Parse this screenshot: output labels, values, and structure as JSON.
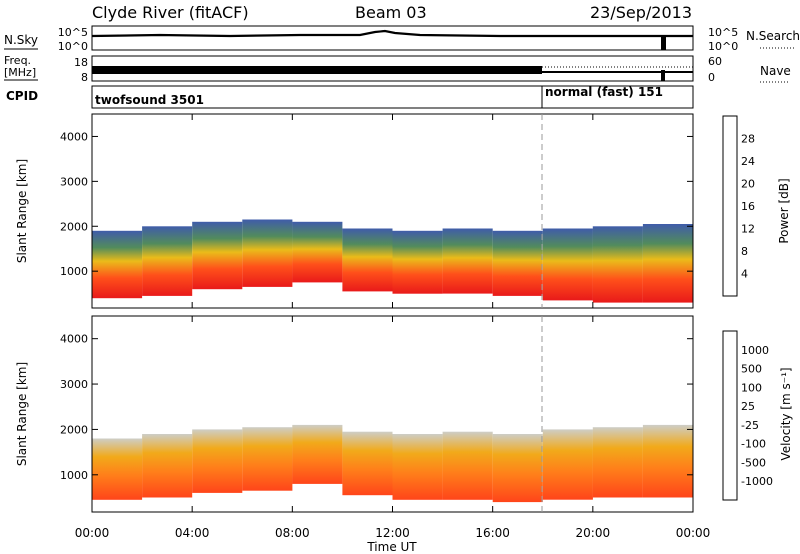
{
  "header": {
    "station": "Clyde River (fitACF)",
    "beam": "Beam 03",
    "date": "23/Sep/2013"
  },
  "noise_panel": {
    "left_label": "N.Sky",
    "right_label": "N.Search",
    "left_ticks": [
      "10^5",
      "10^0"
    ],
    "right_ticks": [
      "10^5",
      "10^0"
    ]
  },
  "freq_panel": {
    "left_label_1": "Freq.",
    "left_label_2": "[MHz]",
    "left_ticks": [
      "18",
      "8"
    ],
    "right_label": "Nave",
    "right_ticks": [
      "60",
      "0"
    ]
  },
  "cpid_panel": {
    "label": "CPID",
    "modes": [
      {
        "name": "twofsound 3501",
        "start_hour": 0
      },
      {
        "name": "normal (fast) 151",
        "start_hour": 18
      }
    ]
  },
  "chart_data": [
    {
      "type": "heatmap",
      "name": "power",
      "ylabel": "Slant Range [km]",
      "xlabel": "",
      "x_ticks": [
        "00:00",
        "04:00",
        "08:00",
        "12:00",
        "16:00",
        "20:00",
        "00:00"
      ],
      "xlim_hours": [
        0,
        24
      ],
      "y_ticks": [
        1000,
        2000,
        3000,
        4000
      ],
      "ylim": [
        180,
        4500
      ],
      "colorbar": {
        "title": "Power [dB]",
        "labels": [
          "4",
          "8",
          "12",
          "16",
          "20",
          "24",
          "28"
        ],
        "colors": [
          "#0a14e6",
          "#2a4aa0",
          "#3f7f4a",
          "#8cc63f",
          "#e8b400",
          "#ff7f00",
          "#ff3c00",
          "#e60000"
        ]
      },
      "bands": [
        {
          "start": 0,
          "end": 2,
          "lower": 400,
          "upper": 1900
        },
        {
          "start": 2,
          "end": 4,
          "lower": 450,
          "upper": 2000
        },
        {
          "start": 4,
          "end": 6,
          "lower": 600,
          "upper": 2100
        },
        {
          "start": 6,
          "end": 8,
          "lower": 650,
          "upper": 2150
        },
        {
          "start": 8,
          "end": 10,
          "lower": 750,
          "upper": 2100
        },
        {
          "start": 10,
          "end": 12,
          "lower": 550,
          "upper": 1950
        },
        {
          "start": 12,
          "end": 14,
          "lower": 500,
          "upper": 1900
        },
        {
          "start": 14,
          "end": 16,
          "lower": 500,
          "upper": 1950
        },
        {
          "start": 16,
          "end": 18,
          "lower": 450,
          "upper": 1900
        },
        {
          "start": 18,
          "end": 20,
          "lower": 350,
          "upper": 1950
        },
        {
          "start": 20,
          "end": 22,
          "lower": 300,
          "upper": 2000
        },
        {
          "start": 22,
          "end": 24,
          "lower": 300,
          "upper": 2050
        }
      ]
    },
    {
      "type": "heatmap",
      "name": "velocity",
      "ylabel": "Slant Range [km]",
      "xlabel": "Time UT",
      "x_ticks": [
        "00:00",
        "04:00",
        "08:00",
        "12:00",
        "16:00",
        "20:00",
        "00:00"
      ],
      "xlim_hours": [
        0,
        24
      ],
      "y_ticks": [
        1000,
        2000,
        3000,
        4000
      ],
      "ylim": [
        180,
        4500
      ],
      "colorbar": {
        "title": "Velocity [m s⁻¹]",
        "labels": [
          "1000",
          "500",
          "100",
          "25",
          "-25",
          "-100",
          "-500",
          "-1000"
        ],
        "colors": [
          "#1a2ab0",
          "#3f6fb0",
          "#3f8f50",
          "#6fcf3f",
          "#c8c8c0",
          "#f0a000",
          "#ff7000",
          "#ff3000",
          "#e00000"
        ]
      },
      "bands": [
        {
          "start": 0,
          "end": 2,
          "lower": 450,
          "upper": 1800
        },
        {
          "start": 2,
          "end": 4,
          "lower": 500,
          "upper": 1900
        },
        {
          "start": 4,
          "end": 6,
          "lower": 600,
          "upper": 2000
        },
        {
          "start": 6,
          "end": 8,
          "lower": 650,
          "upper": 2050
        },
        {
          "start": 8,
          "end": 10,
          "lower": 800,
          "upper": 2100
        },
        {
          "start": 10,
          "end": 12,
          "lower": 550,
          "upper": 1950
        },
        {
          "start": 12,
          "end": 14,
          "lower": 450,
          "upper": 1900
        },
        {
          "start": 14,
          "end": 16,
          "lower": 450,
          "upper": 1950
        },
        {
          "start": 16,
          "end": 18,
          "lower": 400,
          "upper": 1900
        },
        {
          "start": 18,
          "end": 20,
          "lower": 450,
          "upper": 2000
        },
        {
          "start": 20,
          "end": 22,
          "lower": 500,
          "upper": 2050
        },
        {
          "start": 22,
          "end": 24,
          "lower": 500,
          "upper": 2100
        }
      ]
    }
  ]
}
